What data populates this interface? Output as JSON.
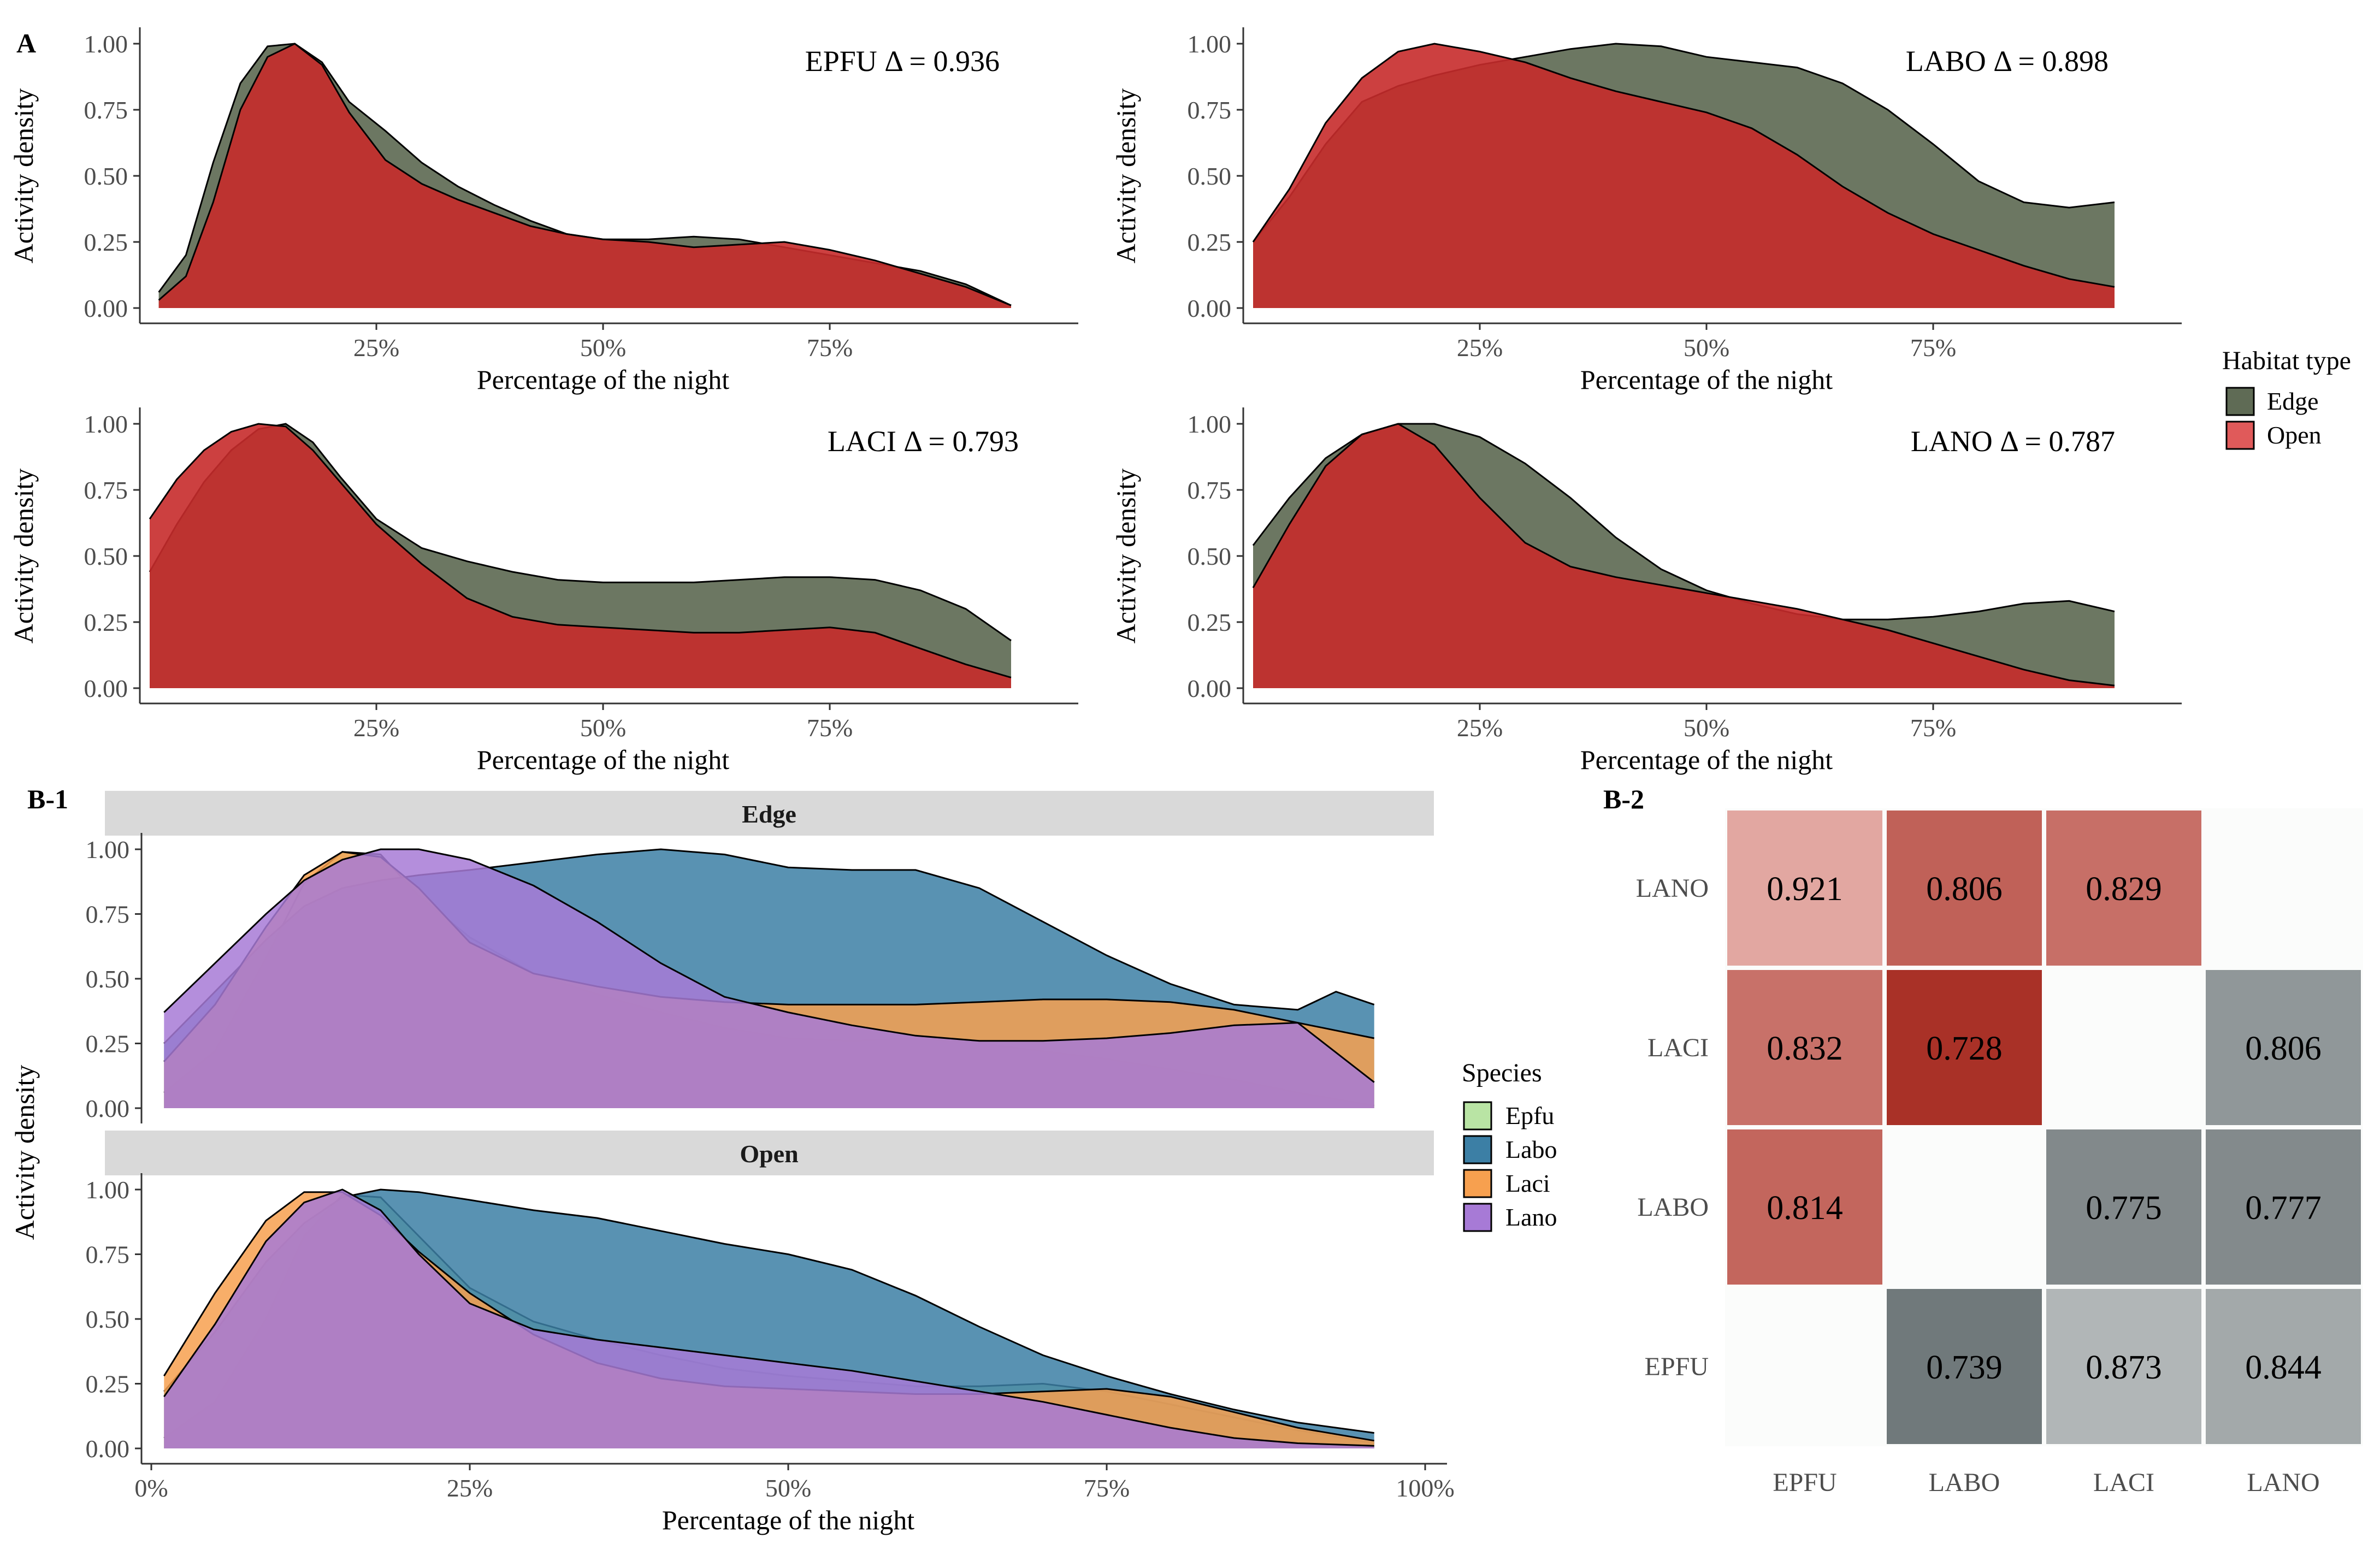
{
  "panel_labels": {
    "a": "A",
    "b1": "B-1",
    "b2": "B-2"
  },
  "colors": {
    "edge": "#5f6b55",
    "open": "#c62b2b",
    "open_legend": "#e05a5a",
    "epfu": "#b9e4a4",
    "labo": "#3c7fa5",
    "laci": "#f7a04f",
    "lano": "#a77ad6",
    "heat_high": "#a72c22",
    "heat_low": "#e8b3ad",
    "heat_neutral": "#6c7577",
    "heat_neutral_low": "#b4b9ba"
  },
  "legend_habitat": {
    "title": "Habitat type",
    "items": [
      "Edge",
      "Open"
    ]
  },
  "legend_species": {
    "title": "Species",
    "items": [
      "Epfu",
      "Labo",
      "Laci",
      "Lano"
    ]
  },
  "chart_data": [
    {
      "type": "area",
      "title": "EPFU Δ = 0.936",
      "xlabel": "Percentage of the night",
      "ylabel": "Activity density",
      "xlim": [
        0,
        100
      ],
      "ylim": [
        0,
        1
      ],
      "xticks": [
        "25%",
        "50%",
        "75%"
      ],
      "yticks": [
        "0.00",
        "0.25",
        "0.50",
        "0.75",
        "1.00"
      ],
      "series": [
        {
          "name": "Edge",
          "x": [
            1,
            4,
            7,
            10,
            13,
            16,
            19,
            22,
            26,
            30,
            34,
            38,
            42,
            46,
            50,
            55,
            60,
            65,
            70,
            75,
            80,
            85,
            90,
            95
          ],
          "values": [
            0.06,
            0.2,
            0.55,
            0.85,
            0.99,
            1.0,
            0.93,
            0.78,
            0.67,
            0.55,
            0.46,
            0.39,
            0.33,
            0.28,
            0.26,
            0.26,
            0.27,
            0.26,
            0.23,
            0.2,
            0.17,
            0.14,
            0.09,
            0.01
          ]
        },
        {
          "name": "Open",
          "x": [
            1,
            4,
            7,
            10,
            13,
            16,
            19,
            22,
            26,
            30,
            34,
            38,
            42,
            46,
            50,
            55,
            60,
            65,
            70,
            75,
            80,
            85,
            90,
            95
          ],
          "values": [
            0.03,
            0.12,
            0.4,
            0.75,
            0.95,
            1.0,
            0.92,
            0.74,
            0.56,
            0.47,
            0.41,
            0.36,
            0.31,
            0.28,
            0.26,
            0.25,
            0.23,
            0.24,
            0.25,
            0.22,
            0.18,
            0.13,
            0.08,
            0.01
          ]
        }
      ]
    },
    {
      "type": "area",
      "title": "LABO Δ = 0.898",
      "xlabel": "Percentage of the night",
      "ylabel": "Activity density",
      "xlim": [
        0,
        100
      ],
      "ylim": [
        0,
        1
      ],
      "xticks": [
        "25%",
        "50%",
        "75%"
      ],
      "yticks": [
        "0.00",
        "0.25",
        "0.50",
        "0.75",
        "1.00"
      ],
      "series": [
        {
          "name": "Edge",
          "x": [
            0,
            4,
            8,
            12,
            16,
            20,
            25,
            30,
            35,
            40,
            45,
            50,
            55,
            60,
            65,
            70,
            75,
            80,
            85,
            90,
            95
          ],
          "values": [
            0.25,
            0.42,
            0.62,
            0.78,
            0.84,
            0.88,
            0.92,
            0.95,
            0.98,
            1.0,
            0.99,
            0.95,
            0.93,
            0.91,
            0.85,
            0.75,
            0.62,
            0.48,
            0.4,
            0.38,
            0.4
          ]
        },
        {
          "name": "Open",
          "x": [
            0,
            4,
            8,
            12,
            16,
            20,
            25,
            30,
            35,
            40,
            45,
            50,
            55,
            60,
            65,
            70,
            75,
            80,
            85,
            90,
            95
          ],
          "values": [
            0.25,
            0.45,
            0.7,
            0.87,
            0.97,
            1.0,
            0.97,
            0.93,
            0.87,
            0.82,
            0.78,
            0.74,
            0.68,
            0.58,
            0.46,
            0.36,
            0.28,
            0.22,
            0.16,
            0.11,
            0.08
          ]
        }
      ]
    },
    {
      "type": "area",
      "title": "LACI Δ = 0.793",
      "xlabel": "Percentage of the night",
      "ylabel": "Activity density",
      "xlim": [
        0,
        100
      ],
      "ylim": [
        0,
        1
      ],
      "xticks": [
        "25%",
        "50%",
        "75%"
      ],
      "yticks": [
        "0.00",
        "0.25",
        "0.50",
        "0.75",
        "1.00"
      ],
      "series": [
        {
          "name": "Edge",
          "x": [
            0,
            3,
            6,
            9,
            12,
            15,
            18,
            21,
            25,
            30,
            35,
            40,
            45,
            50,
            55,
            60,
            65,
            70,
            75,
            80,
            85,
            90,
            95
          ],
          "values": [
            0.44,
            0.62,
            0.78,
            0.9,
            0.98,
            1.0,
            0.93,
            0.8,
            0.64,
            0.53,
            0.48,
            0.44,
            0.41,
            0.4,
            0.4,
            0.4,
            0.41,
            0.42,
            0.42,
            0.41,
            0.37,
            0.3,
            0.18
          ]
        },
        {
          "name": "Open",
          "x": [
            0,
            3,
            6,
            9,
            12,
            15,
            18,
            21,
            25,
            30,
            35,
            40,
            45,
            50,
            55,
            60,
            65,
            70,
            75,
            80,
            85,
            90,
            95
          ],
          "values": [
            0.64,
            0.79,
            0.9,
            0.97,
            1.0,
            0.99,
            0.9,
            0.78,
            0.62,
            0.47,
            0.34,
            0.27,
            0.24,
            0.23,
            0.22,
            0.21,
            0.21,
            0.22,
            0.23,
            0.21,
            0.15,
            0.09,
            0.04
          ]
        }
      ]
    },
    {
      "type": "area",
      "title": "LANO Δ = 0.787",
      "xlabel": "Percentage of the night",
      "ylabel": "Activity density",
      "xlim": [
        0,
        100
      ],
      "ylim": [
        0,
        1
      ],
      "xticks": [
        "25%",
        "50%",
        "75%"
      ],
      "yticks": [
        "0.00",
        "0.25",
        "0.50",
        "0.75",
        "1.00"
      ],
      "series": [
        {
          "name": "Edge",
          "x": [
            0,
            4,
            8,
            12,
            16,
            20,
            25,
            30,
            35,
            40,
            45,
            50,
            55,
            60,
            65,
            70,
            75,
            80,
            85,
            90,
            95
          ],
          "values": [
            0.54,
            0.72,
            0.87,
            0.96,
            1.0,
            1.0,
            0.95,
            0.85,
            0.72,
            0.57,
            0.45,
            0.37,
            0.32,
            0.28,
            0.26,
            0.26,
            0.27,
            0.29,
            0.32,
            0.33,
            0.29
          ]
        },
        {
          "name": "Open",
          "x": [
            0,
            4,
            8,
            12,
            16,
            20,
            25,
            30,
            35,
            40,
            45,
            50,
            55,
            60,
            65,
            70,
            75,
            80,
            85,
            90,
            95
          ],
          "values": [
            0.38,
            0.62,
            0.84,
            0.96,
            1.0,
            0.92,
            0.72,
            0.55,
            0.46,
            0.42,
            0.39,
            0.36,
            0.33,
            0.3,
            0.26,
            0.22,
            0.17,
            0.12,
            0.07,
            0.03,
            0.01
          ]
        }
      ]
    },
    {
      "type": "area",
      "facet": "Edge",
      "ylabel": "Activity density",
      "xlim": [
        0,
        100
      ],
      "ylim": [
        0,
        1
      ],
      "yticks": [
        "0.00",
        "0.25",
        "0.50",
        "0.75",
        "1.00"
      ],
      "series": [
        {
          "name": "Epfu",
          "x": [
            1,
            5,
            9,
            12,
            15,
            18,
            21,
            25,
            30,
            35,
            40,
            45,
            50,
            55,
            60,
            65,
            70,
            75,
            80,
            85,
            90,
            96
          ],
          "values": [
            0.06,
            0.22,
            0.58,
            0.87,
            0.99,
            0.98,
            0.82,
            0.66,
            0.52,
            0.44,
            0.37,
            0.31,
            0.27,
            0.26,
            0.27,
            0.25,
            0.22,
            0.19,
            0.15,
            0.11,
            0.06,
            0.01
          ]
        },
        {
          "name": "Labo",
          "x": [
            1,
            5,
            9,
            12,
            15,
            18,
            21,
            25,
            30,
            35,
            40,
            45,
            50,
            55,
            60,
            65,
            70,
            75,
            80,
            85,
            90,
            93,
            96
          ],
          "values": [
            0.25,
            0.45,
            0.65,
            0.78,
            0.85,
            0.88,
            0.9,
            0.92,
            0.95,
            0.98,
            1.0,
            0.98,
            0.93,
            0.92,
            0.92,
            0.85,
            0.72,
            0.59,
            0.48,
            0.4,
            0.38,
            0.45,
            0.4
          ]
        },
        {
          "name": "Laci",
          "x": [
            1,
            5,
            9,
            12,
            15,
            18,
            21,
            25,
            30,
            35,
            40,
            45,
            50,
            55,
            60,
            65,
            70,
            75,
            80,
            85,
            90,
            96
          ],
          "values": [
            0.18,
            0.4,
            0.7,
            0.9,
            0.99,
            0.97,
            0.85,
            0.64,
            0.52,
            0.47,
            0.43,
            0.41,
            0.4,
            0.4,
            0.4,
            0.41,
            0.42,
            0.42,
            0.41,
            0.38,
            0.33,
            0.27
          ]
        },
        {
          "name": "Lano",
          "x": [
            1,
            5,
            9,
            12,
            15,
            18,
            21,
            25,
            30,
            35,
            40,
            45,
            50,
            55,
            60,
            65,
            70,
            75,
            80,
            85,
            90,
            96
          ],
          "values": [
            0.37,
            0.56,
            0.75,
            0.88,
            0.96,
            1.0,
            1.0,
            0.96,
            0.86,
            0.72,
            0.56,
            0.43,
            0.37,
            0.32,
            0.28,
            0.26,
            0.26,
            0.27,
            0.29,
            0.32,
            0.33,
            0.1
          ]
        }
      ]
    },
    {
      "type": "area",
      "facet": "Open",
      "xlabel": "Percentage of the night",
      "ylabel": "Activity density",
      "xlim": [
        0,
        100
      ],
      "ylim": [
        0,
        1
      ],
      "xticks": [
        "0%",
        "25%",
        "50%",
        "75%",
        "100%"
      ],
      "yticks": [
        "0.00",
        "0.25",
        "0.50",
        "0.75",
        "1.00"
      ],
      "series": [
        {
          "name": "Epfu",
          "x": [
            1,
            5,
            9,
            12,
            15,
            18,
            21,
            25,
            30,
            35,
            40,
            45,
            50,
            55,
            60,
            65,
            70,
            75,
            80,
            85,
            90,
            96
          ],
          "values": [
            0.04,
            0.18,
            0.5,
            0.82,
            0.98,
            0.97,
            0.82,
            0.62,
            0.49,
            0.42,
            0.36,
            0.31,
            0.28,
            0.26,
            0.24,
            0.24,
            0.25,
            0.22,
            0.17,
            0.12,
            0.07,
            0.02
          ]
        },
        {
          "name": "Labo",
          "x": [
            1,
            5,
            9,
            12,
            15,
            18,
            21,
            25,
            30,
            35,
            40,
            45,
            50,
            55,
            60,
            65,
            70,
            75,
            80,
            85,
            90,
            96
          ],
          "values": [
            0.22,
            0.45,
            0.72,
            0.87,
            0.97,
            1.0,
            0.99,
            0.96,
            0.92,
            0.89,
            0.84,
            0.79,
            0.75,
            0.69,
            0.59,
            0.47,
            0.36,
            0.28,
            0.21,
            0.15,
            0.1,
            0.06
          ]
        },
        {
          "name": "Laci",
          "x": [
            1,
            5,
            9,
            12,
            15,
            18,
            21,
            25,
            30,
            35,
            40,
            45,
            50,
            55,
            60,
            65,
            70,
            75,
            80,
            85,
            90,
            96
          ],
          "values": [
            0.28,
            0.6,
            0.88,
            0.99,
            0.99,
            0.9,
            0.76,
            0.6,
            0.44,
            0.33,
            0.27,
            0.24,
            0.23,
            0.22,
            0.21,
            0.21,
            0.22,
            0.23,
            0.2,
            0.14,
            0.08,
            0.03
          ]
        },
        {
          "name": "Lano",
          "x": [
            1,
            5,
            9,
            12,
            15,
            18,
            21,
            25,
            30,
            35,
            40,
            45,
            50,
            55,
            60,
            65,
            70,
            75,
            80,
            85,
            90,
            96
          ],
          "values": [
            0.2,
            0.48,
            0.8,
            0.95,
            1.0,
            0.92,
            0.75,
            0.56,
            0.46,
            0.42,
            0.39,
            0.36,
            0.33,
            0.3,
            0.26,
            0.22,
            0.18,
            0.13,
            0.08,
            0.04,
            0.02,
            0.01
          ]
        }
      ]
    },
    {
      "type": "heatmap",
      "x_categories": [
        "EPFU",
        "LABO",
        "LACI",
        "LANO"
      ],
      "y_categories": [
        "LANO",
        "LACI",
        "LABO",
        "EPFU"
      ],
      "cells": [
        {
          "row": 0,
          "col": 0,
          "label": "0.921",
          "value": 0.921,
          "group": "open"
        },
        {
          "row": 0,
          "col": 1,
          "label": "0.806",
          "value": 0.806,
          "group": "open"
        },
        {
          "row": 0,
          "col": 2,
          "label": "0.829",
          "value": 0.829,
          "group": "open"
        },
        {
          "row": 1,
          "col": 0,
          "label": "0.832",
          "value": 0.832,
          "group": "open"
        },
        {
          "row": 1,
          "col": 1,
          "label": "0.728",
          "value": 0.728,
          "group": "open"
        },
        {
          "row": 1,
          "col": 3,
          "label": "0.806",
          "value": 0.806,
          "group": "edge"
        },
        {
          "row": 2,
          "col": 0,
          "label": "0.814",
          "value": 0.814,
          "group": "open"
        },
        {
          "row": 2,
          "col": 2,
          "label": "0.775",
          "value": 0.775,
          "group": "edge"
        },
        {
          "row": 2,
          "col": 3,
          "label": "0.777",
          "value": 0.777,
          "group": "edge"
        },
        {
          "row": 3,
          "col": 1,
          "label": "0.739",
          "value": 0.739,
          "group": "edge"
        },
        {
          "row": 3,
          "col": 2,
          "label": "0.873",
          "value": 0.873,
          "group": "edge"
        },
        {
          "row": 3,
          "col": 3,
          "label": "0.844",
          "value": 0.844,
          "group": "edge"
        }
      ]
    }
  ]
}
